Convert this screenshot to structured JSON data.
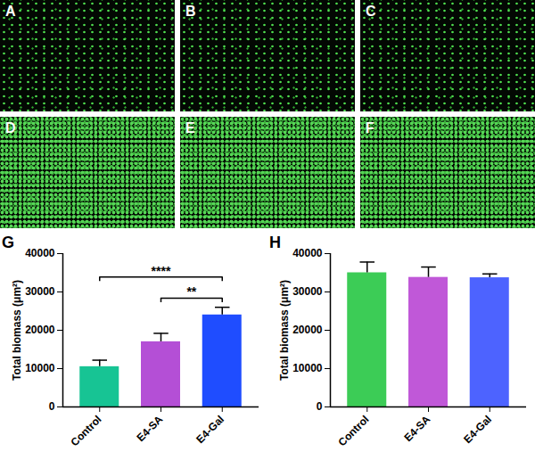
{
  "image_panels": {
    "labels": [
      "A",
      "B",
      "C",
      "D",
      "E",
      "F"
    ]
  },
  "chart_data": [
    {
      "type": "bar",
      "panel": "G",
      "categories": [
        "Control",
        "E4-SA",
        "E4-Gal"
      ],
      "values": [
        10500,
        17000,
        24000
      ],
      "errors": [
        1700,
        2200,
        2000
      ],
      "colors": [
        "#17c494",
        "#b44fd6",
        "#1f4dff"
      ],
      "ylabel": "Total biomass (μm²)",
      "ylim": [
        0,
        40000
      ],
      "yticks": [
        0,
        10000,
        20000,
        30000,
        40000
      ],
      "significance": [
        {
          "from": "E4-SA",
          "to": "E4-Gal",
          "label": "**"
        },
        {
          "from": "Control",
          "to": "E4-Gal",
          "label": "****"
        }
      ]
    },
    {
      "type": "bar",
      "panel": "H",
      "categories": [
        "Control",
        "E4-SA",
        "E4-Gal"
      ],
      "values": [
        35000,
        33800,
        33700
      ],
      "errors": [
        2800,
        2700,
        1000
      ],
      "colors": [
        "#3ccc56",
        "#c058d8",
        "#4d63ff"
      ],
      "ylabel": "Total biomass (μm²)",
      "ylim": [
        0,
        40000
      ],
      "yticks": [
        0,
        10000,
        20000,
        30000,
        40000
      ],
      "significance": []
    }
  ]
}
